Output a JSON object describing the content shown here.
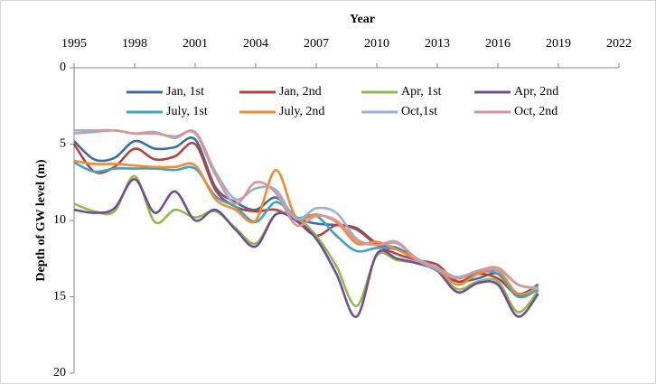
{
  "chart_data": {
    "type": "line",
    "x_label": "Year",
    "y_label": "Depth of GW level (m)",
    "x": [
      1995,
      1996,
      1997,
      1998,
      1999,
      2000,
      2001,
      2002,
      2003,
      2004,
      2005,
      2006,
      2007,
      2008,
      2009,
      2010,
      2011,
      2012,
      2013,
      2014,
      2015,
      2016,
      2017,
      2018
    ],
    "xlim": [
      1995,
      2022
    ],
    "xticks": [
      1995,
      1998,
      2001,
      2004,
      2007,
      2010,
      2013,
      2016,
      2019,
      2022
    ],
    "x_axis_position": "top",
    "ylim": [
      0,
      20
    ],
    "yticks": [
      0,
      5,
      10,
      15,
      20
    ],
    "y_inverted": true,
    "grid": false,
    "smooth": true,
    "legend_position": "top",
    "series": [
      {
        "name": "Jan, 1st",
        "color": "#3a6ea8",
        "values": [
          4.8,
          6.0,
          5.9,
          4.8,
          5.3,
          5.2,
          4.7,
          7.8,
          8.8,
          9.3,
          8.5,
          9.8,
          10.2,
          10.3,
          10.5,
          11.5,
          11.8,
          12.5,
          13.3,
          14.0,
          13.8,
          13.5,
          14.8,
          14.2
        ]
      },
      {
        "name": "Jan, 2nd",
        "color": "#b8413d",
        "values": [
          5.0,
          6.8,
          6.5,
          5.3,
          6.0,
          5.8,
          5.0,
          8.0,
          9.1,
          9.4,
          9.3,
          10.0,
          11.0,
          10.3,
          10.6,
          11.6,
          12.2,
          12.6,
          12.9,
          14.0,
          13.5,
          13.8,
          14.9,
          14.5
        ]
      },
      {
        "name": "Apr, 1st",
        "color": "#94b84e",
        "values": [
          8.9,
          9.4,
          9.4,
          7.1,
          10.1,
          9.3,
          9.8,
          9.4,
          10.5,
          11.5,
          9.6,
          9.8,
          11.0,
          13.0,
          15.6,
          12.3,
          12.6,
          12.8,
          13.3,
          14.5,
          14.0,
          14.0,
          16.0,
          14.6
        ]
      },
      {
        "name": "Apr, 2nd",
        "color": "#6f4f94",
        "values": [
          9.3,
          9.5,
          9.2,
          7.3,
          9.5,
          8.1,
          10.0,
          9.3,
          10.6,
          11.7,
          9.6,
          10.0,
          11.2,
          13.5,
          16.3,
          12.2,
          12.5,
          12.8,
          13.3,
          14.7,
          14.1,
          14.2,
          16.3,
          14.8
        ]
      },
      {
        "name": "July, 1st",
        "color": "#3ea3be",
        "values": [
          6.2,
          6.8,
          6.6,
          6.6,
          6.6,
          6.7,
          6.6,
          8.4,
          9.1,
          10.1,
          8.8,
          9.8,
          9.7,
          11.0,
          12.0,
          11.8,
          11.9,
          12.5,
          13.3,
          13.8,
          13.4,
          13.5,
          15.0,
          14.5
        ]
      },
      {
        "name": "July, 2nd",
        "color": "#f08a33",
        "values": [
          6.1,
          6.3,
          6.3,
          6.4,
          6.5,
          6.5,
          6.4,
          8.6,
          9.3,
          10.0,
          6.7,
          9.8,
          9.6,
          10.1,
          11.5,
          11.4,
          11.9,
          12.6,
          13.2,
          14.2,
          13.5,
          13.3,
          14.8,
          14.4
        ]
      },
      {
        "name": "Oct,1st",
        "color": "#95b3d7",
        "values": [
          4.1,
          4.1,
          4.1,
          4.3,
          4.2,
          4.6,
          4.2,
          6.8,
          8.6,
          7.9,
          8.0,
          9.9,
          9.2,
          9.5,
          11.2,
          11.6,
          11.5,
          12.5,
          13.1,
          13.7,
          13.3,
          13.2,
          14.2,
          14.5
        ]
      },
      {
        "name": "Oct, 2nd",
        "color": "#d99694",
        "values": [
          4.3,
          4.2,
          4.1,
          4.3,
          4.3,
          4.5,
          4.3,
          7.0,
          8.9,
          7.5,
          8.2,
          10.3,
          9.7,
          10.0,
          11.3,
          11.6,
          11.4,
          12.6,
          13.2,
          13.8,
          13.3,
          13.1,
          14.2,
          14.4
        ]
      }
    ]
  }
}
